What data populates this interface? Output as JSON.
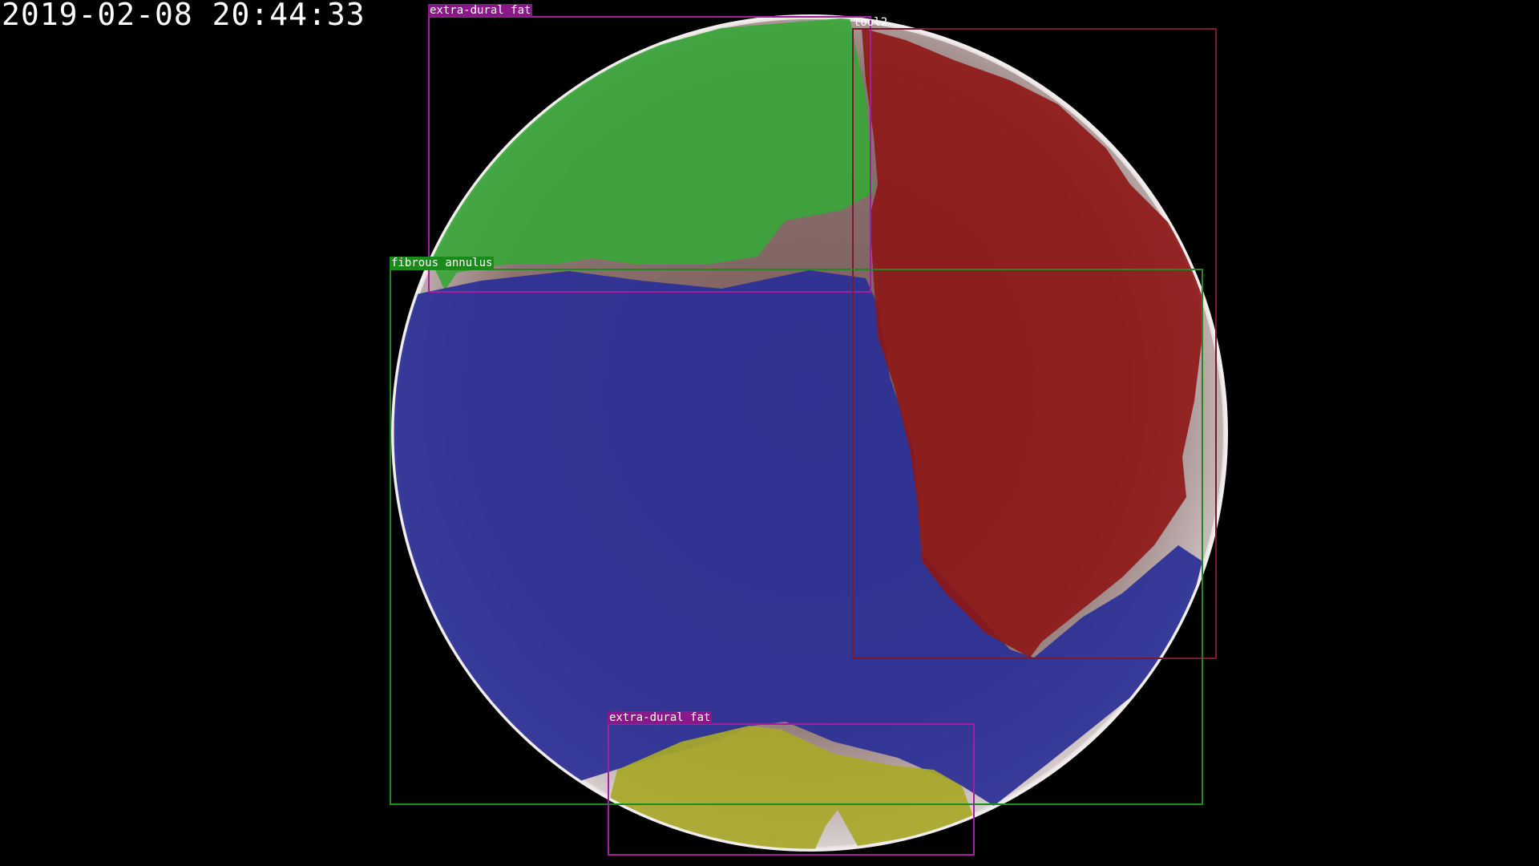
{
  "timestamp": "2019-02-08 20:44:33",
  "annotations": [
    {
      "id": "fat-top",
      "label": "extra-dural fat",
      "box_color": "#a020a0",
      "label_bg": "#8a188a",
      "mask_color": "#3aa63a"
    },
    {
      "id": "tool2",
      "label": "tool2",
      "box_color": "#7a1a2a",
      "label_bg": "transparent",
      "mask_color": "#8e1616"
    },
    {
      "id": "annulus",
      "label": "fibrous annulus",
      "box_color": "#1f8a1f",
      "label_bg": "#1a8a1a",
      "mask_color": "#2b2f96"
    },
    {
      "id": "fat-bottom",
      "label": "extra-dural fat",
      "box_color": "#a020a0",
      "label_bg": "#8a188a",
      "mask_color": "#a8a82a"
    }
  ]
}
